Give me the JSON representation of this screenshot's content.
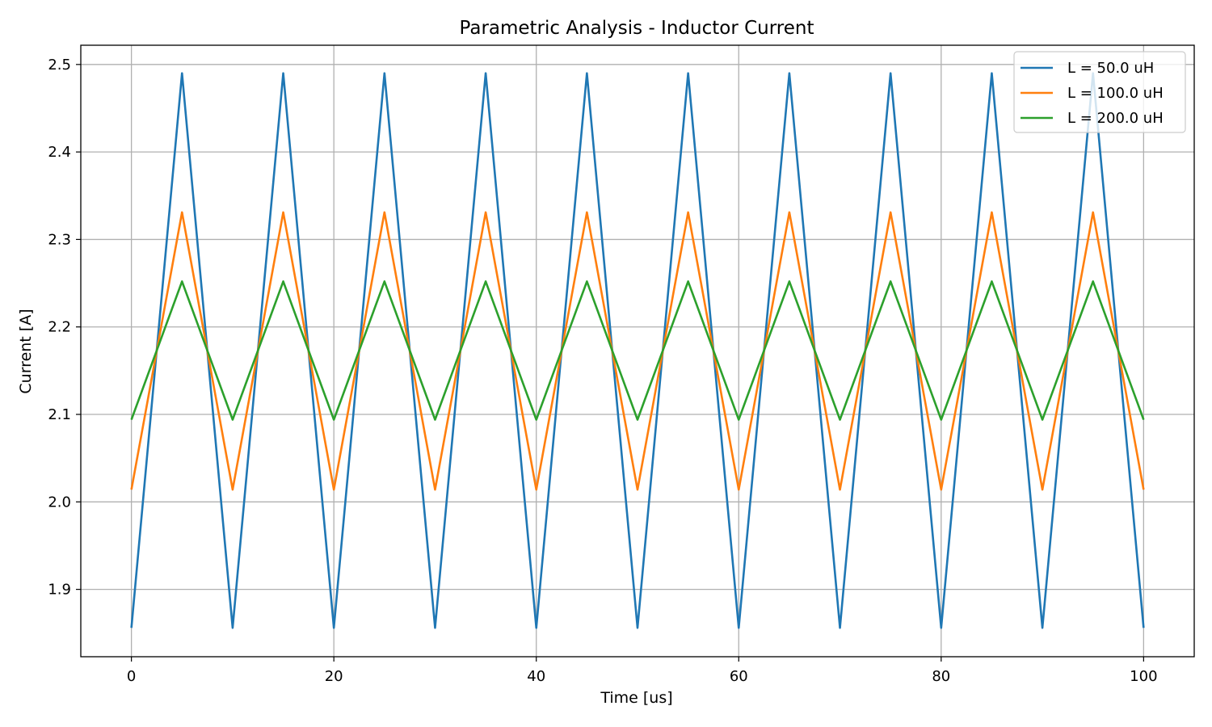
{
  "chart_data": {
    "type": "line",
    "title": "Parametric Analysis - Inductor Current",
    "xlabel": "Time [us]",
    "ylabel": "Current [A]",
    "xlim": [
      -5,
      105
    ],
    "ylim": [
      1.823,
      2.522
    ],
    "xticks": [
      0,
      20,
      40,
      60,
      80,
      100
    ],
    "xtick_labels": [
      "0",
      "20",
      "40",
      "60",
      "80",
      "100"
    ],
    "yticks": [
      1.9,
      2.0,
      2.1,
      2.2,
      2.3,
      2.4,
      2.5
    ],
    "ytick_labels": [
      "1.9",
      "2.0",
      "2.1",
      "2.2",
      "2.3",
      "2.4",
      "2.5"
    ],
    "grid": true,
    "legend_position": "top-right",
    "x": [
      0,
      5,
      10,
      15,
      20,
      25,
      30,
      35,
      40,
      45,
      50,
      55,
      60,
      65,
      70,
      75,
      80,
      85,
      90,
      95,
      100
    ],
    "series": [
      {
        "name": "L = 50.0 uH",
        "color": "#1f77b4",
        "values": [
          1.856,
          2.49,
          1.856,
          2.49,
          1.856,
          2.49,
          1.856,
          2.49,
          1.856,
          2.49,
          1.856,
          2.49,
          1.856,
          2.49,
          1.856,
          2.49,
          1.856,
          2.49,
          1.856,
          2.49,
          1.856
        ]
      },
      {
        "name": "L = 100.0 uH",
        "color": "#ff7f0e",
        "values": [
          2.014,
          2.331,
          2.014,
          2.331,
          2.014,
          2.331,
          2.014,
          2.331,
          2.014,
          2.331,
          2.014,
          2.331,
          2.014,
          2.331,
          2.014,
          2.331,
          2.014,
          2.331,
          2.014,
          2.331,
          2.014
        ]
      },
      {
        "name": "L = 200.0 uH",
        "color": "#2ca02c",
        "values": [
          2.094,
          2.252,
          2.094,
          2.252,
          2.094,
          2.252,
          2.094,
          2.252,
          2.094,
          2.252,
          2.094,
          2.252,
          2.094,
          2.252,
          2.094,
          2.252,
          2.094,
          2.252,
          2.094,
          2.252,
          2.094
        ]
      }
    ]
  }
}
